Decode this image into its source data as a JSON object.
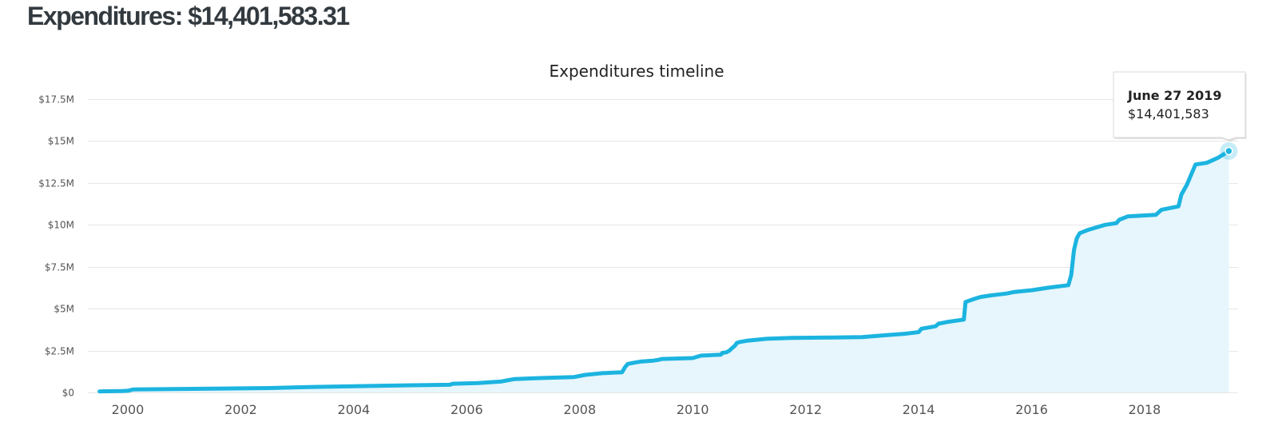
{
  "header": {
    "title": "Expenditures: $14,401,583.31"
  },
  "colors": {
    "line": "#1cb4e0",
    "area": "#e6f6fc",
    "grid": "#e6e6e6"
  },
  "chart_data": {
    "type": "area",
    "title": "Expenditures timeline",
    "xlabel": "",
    "ylabel": "",
    "xlim": [
      1999.45,
      2019.49
    ],
    "ylim": [
      0,
      17500000
    ],
    "x_ticks": [
      2000,
      2002,
      2004,
      2006,
      2008,
      2010,
      2012,
      2014,
      2016,
      2018
    ],
    "x_tick_labels": [
      "2000",
      "2002",
      "2004",
      "2006",
      "2008",
      "2010",
      "2012",
      "2014",
      "2016",
      "2018"
    ],
    "y_ticks": [
      0,
      2500000,
      5000000,
      7500000,
      10000000,
      12500000,
      15000000,
      17500000
    ],
    "y_tick_labels": [
      "$0",
      "$2.5M",
      "$5M",
      "$7.5M",
      "$10M",
      "$12.5M",
      "$15M",
      "$17.5M"
    ],
    "grid": true,
    "legend": "none",
    "series": [
      {
        "x": [
          1999.5,
          1999.9,
          2000.0,
          2000.1,
          2000.8,
          2001.5,
          2002.5,
          2003.3,
          2004.5,
          2005.7,
          2005.75,
          2006.2,
          2006.6,
          2006.85,
          2007.3,
          2007.9,
          2008.1,
          2008.4,
          2008.75,
          2008.8,
          2008.85,
          2009.0,
          2009.1,
          2009.3,
          2009.4,
          2009.45,
          2010.0,
          2010.1,
          2010.15,
          2010.5,
          2010.52,
          2010.6,
          2010.65,
          2010.7,
          2010.75,
          2010.78,
          2010.82,
          2010.95,
          2011.3,
          2011.75,
          2012.5,
          2013.0,
          2013.35,
          2013.75,
          2014.0,
          2014.05,
          2014.3,
          2014.35,
          2014.5,
          2014.8,
          2014.83,
          2015.0,
          2015.1,
          2015.3,
          2015.55,
          2015.7,
          2016.0,
          2016.3,
          2016.65,
          2016.7,
          2016.75,
          2016.8,
          2016.85,
          2017.0,
          2017.1,
          2017.3,
          2017.5,
          2017.55,
          2017.7,
          2018.2,
          2018.3,
          2018.6,
          2018.65,
          2018.75,
          2018.85,
          2018.9,
          2019.1,
          2019.3,
          2019.49
        ],
        "values": [
          60000,
          80000,
          100000,
          180000,
          200000,
          230000,
          260000,
          330000,
          400000,
          460000,
          520000,
          560000,
          650000,
          800000,
          860000,
          920000,
          1050000,
          1150000,
          1200000,
          1500000,
          1700000,
          1800000,
          1850000,
          1900000,
          1950000,
          2000000,
          2050000,
          2150000,
          2200000,
          2250000,
          2350000,
          2400000,
          2500000,
          2650000,
          2800000,
          2950000,
          3000000,
          3080000,
          3200000,
          3250000,
          3280000,
          3300000,
          3400000,
          3500000,
          3600000,
          3800000,
          3950000,
          4100000,
          4200000,
          4350000,
          5400000,
          5600000,
          5700000,
          5800000,
          5900000,
          6000000,
          6100000,
          6250000,
          6400000,
          7000000,
          8500000,
          9200000,
          9500000,
          9700000,
          9800000,
          10000000,
          10100000,
          10300000,
          10500000,
          10600000,
          10900000,
          11100000,
          11800000,
          12400000,
          13200000,
          13600000,
          13700000,
          14000000,
          14401583
        ]
      }
    ],
    "tooltip": {
      "date": "June 27 2019",
      "value": "$14,401,583"
    }
  }
}
